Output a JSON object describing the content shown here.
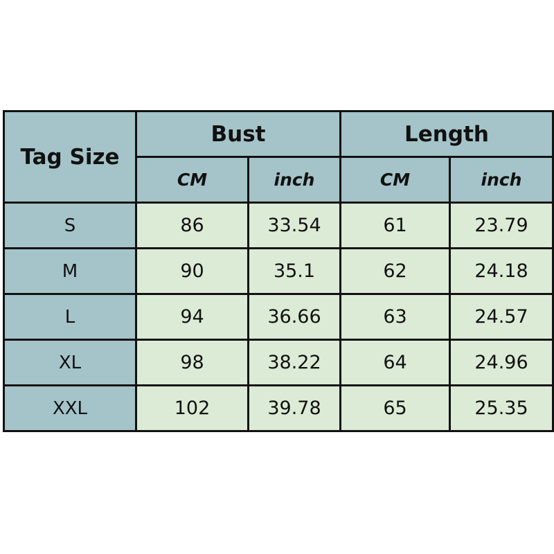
{
  "header": {
    "tag_size": "Tag Size",
    "groups": [
      "Bust",
      "Length"
    ],
    "units": [
      "CM",
      "inch",
      "CM",
      "inch"
    ]
  },
  "rows": [
    {
      "size": "S",
      "values": [
        "86",
        "33.54",
        "61",
        "23.79"
      ]
    },
    {
      "size": "M",
      "values": [
        "90",
        "35.1",
        "62",
        "24.18"
      ]
    },
    {
      "size": "L",
      "values": [
        "94",
        "36.66",
        "63",
        "24.57"
      ]
    },
    {
      "size": "XL",
      "values": [
        "98",
        "38.22",
        "64",
        "24.96"
      ]
    },
    {
      "size": "XXL",
      "values": [
        "102",
        "39.78",
        "65",
        "25.35"
      ]
    }
  ],
  "colors": {
    "header": "#a4c4c9",
    "cell": "#dcebd6",
    "border": "#111111"
  }
}
